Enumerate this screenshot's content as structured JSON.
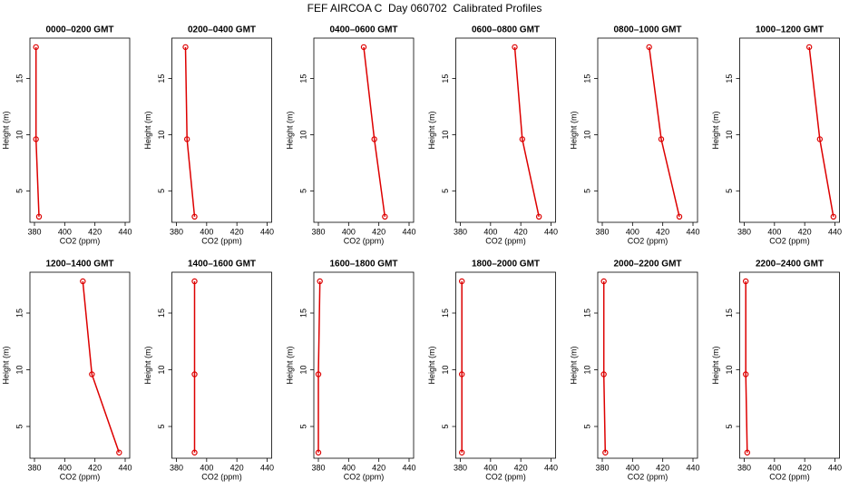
{
  "title": "FEF AIRCOA C  Day 060702  Calibrated Profiles",
  "chart_data": [
    {
      "type": "line",
      "title": "0000–0200 GMT",
      "x_label": "CO2 (ppm)",
      "y_label": "Height (m)",
      "color": "#dd0000",
      "xlim": [
        377,
        443
      ],
      "ylim": [
        2.2,
        18.6
      ],
      "xticks": [
        380,
        400,
        420,
        440
      ],
      "yticks": [
        5,
        10,
        15
      ],
      "x": [
        383,
        381,
        381
      ],
      "values": [
        2.7,
        9.6,
        17.8
      ]
    },
    {
      "type": "line",
      "title": "0200–0400 GMT",
      "x_label": "CO2 (ppm)",
      "y_label": "Height (m)",
      "color": "#dd0000",
      "xlim": [
        377,
        443
      ],
      "ylim": [
        2.2,
        18.6
      ],
      "xticks": [
        380,
        400,
        420,
        440
      ],
      "yticks": [
        5,
        10,
        15
      ],
      "x": [
        392,
        387,
        386
      ],
      "values": [
        2.7,
        9.6,
        17.8
      ]
    },
    {
      "type": "line",
      "title": "0400–0600 GMT",
      "x_label": "CO2 (ppm)",
      "y_label": "Height (m)",
      "color": "#dd0000",
      "xlim": [
        377,
        443
      ],
      "ylim": [
        2.2,
        18.6
      ],
      "xticks": [
        380,
        400,
        420,
        440
      ],
      "yticks": [
        5,
        10,
        15
      ],
      "x": [
        424,
        417,
        410
      ],
      "values": [
        2.7,
        9.6,
        17.8
      ]
    },
    {
      "type": "line",
      "title": "0600–0800 GMT",
      "x_label": "CO2 (ppm)",
      "y_label": "Height (m)",
      "color": "#dd0000",
      "xlim": [
        377,
        443
      ],
      "ylim": [
        2.2,
        18.6
      ],
      "xticks": [
        380,
        400,
        420,
        440
      ],
      "yticks": [
        5,
        10,
        15
      ],
      "x": [
        432,
        421,
        416
      ],
      "values": [
        2.7,
        9.6,
        17.8
      ]
    },
    {
      "type": "line",
      "title": "0800–1000 GMT",
      "x_label": "CO2 (ppm)",
      "y_label": "Height (m)",
      "color": "#dd0000",
      "xlim": [
        377,
        443
      ],
      "ylim": [
        2.2,
        18.6
      ],
      "xticks": [
        380,
        400,
        420,
        440
      ],
      "yticks": [
        5,
        10,
        15
      ],
      "x": [
        431,
        419,
        411
      ],
      "values": [
        2.7,
        9.6,
        17.8
      ]
    },
    {
      "type": "line",
      "title": "1000–1200 GMT",
      "x_label": "CO2 (ppm)",
      "y_label": "Height (m)",
      "color": "#dd0000",
      "xlim": [
        377,
        443
      ],
      "ylim": [
        2.2,
        18.6
      ],
      "xticks": [
        380,
        400,
        420,
        440
      ],
      "yticks": [
        5,
        10,
        15
      ],
      "x": [
        439,
        430,
        423
      ],
      "values": [
        2.7,
        9.6,
        17.8
      ]
    },
    {
      "type": "line",
      "title": "1200–1400 GMT",
      "x_label": "CO2 (ppm)",
      "y_label": "Height (m)",
      "color": "#dd0000",
      "xlim": [
        377,
        443
      ],
      "ylim": [
        2.2,
        18.6
      ],
      "xticks": [
        380,
        400,
        420,
        440
      ],
      "yticks": [
        5,
        10,
        15
      ],
      "x": [
        436,
        418,
        412
      ],
      "values": [
        2.7,
        9.6,
        17.8
      ]
    },
    {
      "type": "line",
      "title": "1400–1600 GMT",
      "x_label": "CO2 (ppm)",
      "y_label": "Height (m)",
      "color": "#dd0000",
      "xlim": [
        377,
        443
      ],
      "ylim": [
        2.2,
        18.6
      ],
      "xticks": [
        380,
        400,
        420,
        440
      ],
      "yticks": [
        5,
        10,
        15
      ],
      "x": [
        392,
        392,
        392
      ],
      "values": [
        2.7,
        9.6,
        17.8
      ]
    },
    {
      "type": "line",
      "title": "1600–1800 GMT",
      "x_label": "CO2 (ppm)",
      "y_label": "Height (m)",
      "color": "#dd0000",
      "xlim": [
        377,
        443
      ],
      "ylim": [
        2.2,
        18.6
      ],
      "xticks": [
        380,
        400,
        420,
        440
      ],
      "yticks": [
        5,
        10,
        15
      ],
      "x": [
        380,
        380,
        381
      ],
      "values": [
        2.7,
        9.6,
        17.8
      ]
    },
    {
      "type": "line",
      "title": "1800–2000 GMT",
      "x_label": "CO2 (ppm)",
      "y_label": "Height (m)",
      "color": "#dd0000",
      "xlim": [
        377,
        443
      ],
      "ylim": [
        2.2,
        18.6
      ],
      "xticks": [
        380,
        400,
        420,
        440
      ],
      "yticks": [
        5,
        10,
        15
      ],
      "x": [
        381,
        381,
        381
      ],
      "values": [
        2.7,
        9.6,
        17.8
      ]
    },
    {
      "type": "line",
      "title": "2000–2200 GMT",
      "x_label": "CO2 (ppm)",
      "y_label": "Height (m)",
      "color": "#dd0000",
      "xlim": [
        377,
        443
      ],
      "ylim": [
        2.2,
        18.6
      ],
      "xticks": [
        380,
        400,
        420,
        440
      ],
      "yticks": [
        5,
        10,
        15
      ],
      "x": [
        382,
        381,
        381
      ],
      "values": [
        2.7,
        9.6,
        17.8
      ]
    },
    {
      "type": "line",
      "title": "2200–2400 GMT",
      "x_label": "CO2 (ppm)",
      "y_label": "Height (m)",
      "color": "#dd0000",
      "xlim": [
        377,
        443
      ],
      "ylim": [
        2.2,
        18.6
      ],
      "xticks": [
        380,
        400,
        420,
        440
      ],
      "yticks": [
        5,
        10,
        15
      ],
      "x": [
        382,
        381,
        381
      ],
      "values": [
        2.7,
        9.6,
        17.8
      ]
    }
  ]
}
